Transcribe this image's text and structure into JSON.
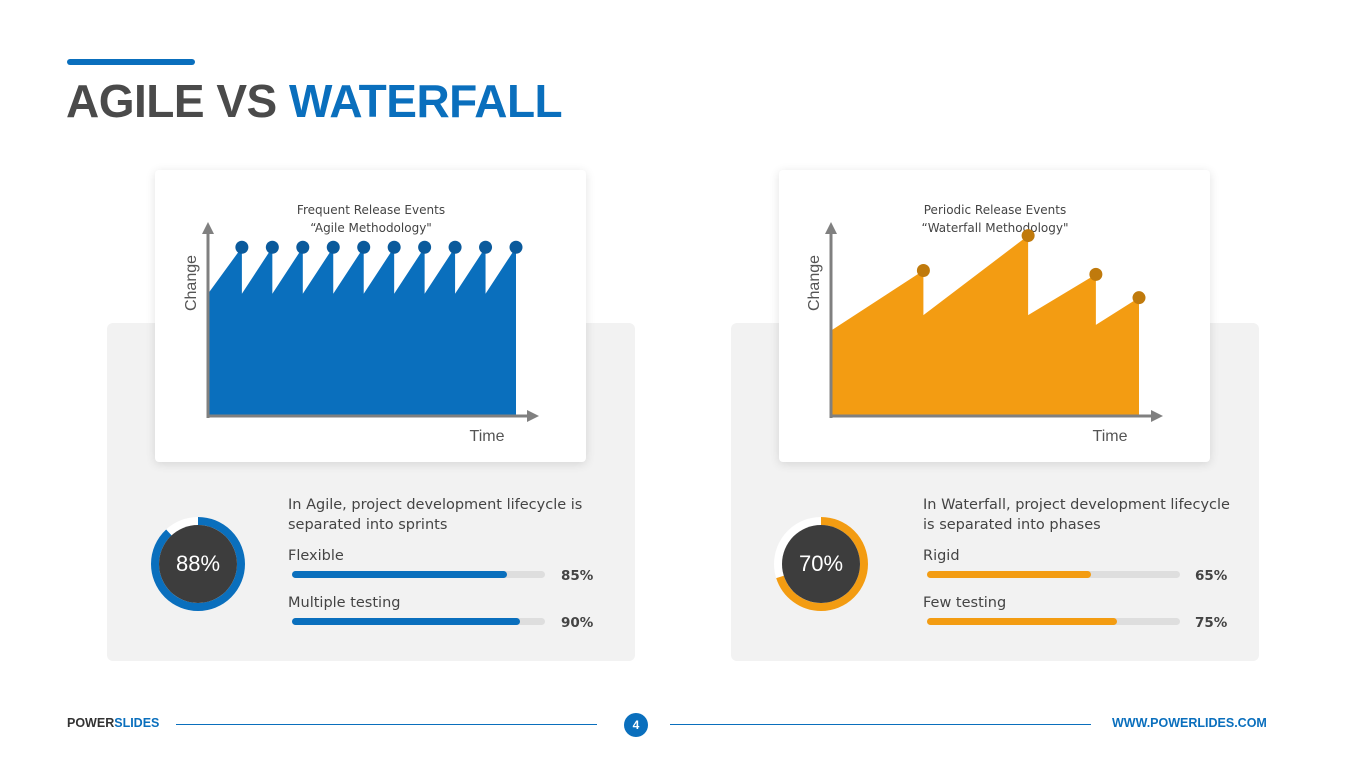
{
  "header": {
    "title_part1": "AGILE VS ",
    "title_part2": "WATERFALL"
  },
  "colors": {
    "accent_blue": "#0a6fbd",
    "agile_fill": "#0a6fbd",
    "agile_dot": "#0a5a9c",
    "waterfall_fill": "#f39c12",
    "waterfall_dot": "#c07a0c",
    "track": "#dedede",
    "donut_center": "#3d3d3d",
    "axis": "#808080"
  },
  "chart_data": [
    {
      "type": "area",
      "title": "Frequent Release Events",
      "subtitle": "“Agile Methodology\"",
      "xlabel": "Time",
      "ylabel": "Change",
      "series": [
        {
          "pattern": "sawtooth",
          "release_events": 10,
          "start_level": 0.63,
          "peak_level": 0.87,
          "end_level": 0.87
        }
      ]
    },
    {
      "type": "area",
      "title": "Periodic Release Events",
      "subtitle": "“Waterfall Methodology\"",
      "xlabel": "Time",
      "ylabel": "Change",
      "series": [
        {
          "pattern": "sawtooth",
          "start_level": 0.44,
          "segments": [
            {
              "x_start": 0.0,
              "x_end": 0.3,
              "start": 0.44,
              "peak": 0.75
            },
            {
              "x_start": 0.3,
              "x_end": 0.64,
              "start": 0.52,
              "peak": 0.93
            },
            {
              "x_start": 0.64,
              "x_end": 0.86,
              "start": 0.52,
              "peak": 0.73
            },
            {
              "x_start": 0.86,
              "x_end": 1.0,
              "start": 0.47,
              "peak": 0.61
            }
          ]
        }
      ]
    },
    {
      "type": "donut",
      "name": "agile-donut",
      "value": 88,
      "label": "88%"
    },
    {
      "type": "donut",
      "name": "waterfall-donut",
      "value": 70,
      "label": "70%"
    }
  ],
  "agile": {
    "description": "In Agile, project development lifecycle is separated into sprints",
    "metrics": [
      {
        "label": "Flexible",
        "value": 85,
        "value_label": "85%"
      },
      {
        "label": "Multiple testing",
        "value": 90,
        "value_label": "90%"
      }
    ]
  },
  "waterfall": {
    "description": "In Waterfall, project development lifecycle is separated into phases",
    "metrics": [
      {
        "label": "Rigid",
        "value": 65,
        "value_label": "65%"
      },
      {
        "label": "Few testing",
        "value": 75,
        "value_label": "75%"
      }
    ]
  },
  "footer": {
    "brand_part1": "POWER",
    "brand_part2": "SLIDES",
    "page_number": "4",
    "url": "WWW.POWERLIDES.COM"
  }
}
